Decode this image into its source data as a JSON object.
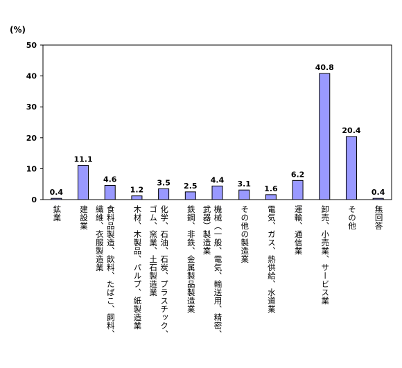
{
  "chart_data": {
    "type": "bar",
    "unit_label": "(%)",
    "ylim": [
      0,
      50
    ],
    "yticks": [
      0,
      10,
      20,
      30,
      40,
      50
    ],
    "categories": [
      [
        "鉱業"
      ],
      [
        "建設業"
      ],
      [
        "食料品製造、飲料、たばこ、飼料、",
        "繊維、衣服製造業"
      ],
      [
        "木材、木製品、パルプ、紙製造業"
      ],
      [
        "化学、石油、石炭、プラスチック、",
        "ゴム、窯業、土石製造業"
      ],
      [
        "鉄鋼、非鉄、金属製品製造業"
      ],
      [
        "機械（一般、電気、輸送用、精密、",
        "武器）製造業"
      ],
      [
        "その他の製造業"
      ],
      [
        "電気、ガス、熱供給、水道業"
      ],
      [
        "運輸、通信業"
      ],
      [
        "卸売、小売業、サービス業"
      ],
      [
        "その他"
      ],
      [
        "無回答"
      ]
    ],
    "values": [
      0.4,
      11.1,
      4.6,
      1.2,
      3.5,
      2.5,
      4.4,
      3.1,
      1.6,
      6.2,
      40.8,
      20.4,
      0.4
    ],
    "value_labels": [
      "0.4",
      "11.1",
      "4.6",
      "1.2",
      "3.5",
      "2.5",
      "4.4",
      "3.1",
      "1.6",
      "6.2",
      "40.8",
      "20.4",
      "0.4"
    ],
    "bar_color": "#9999ff",
    "grid": false
  }
}
